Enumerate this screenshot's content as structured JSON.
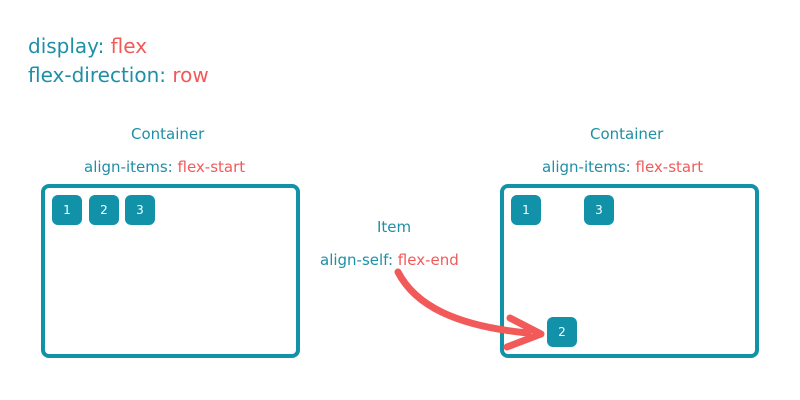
{
  "header": {
    "line1": {
      "property": "display",
      "separator": ":",
      "value": "flex"
    },
    "line2": {
      "property": "flex-direction",
      "separator": ":",
      "value": "row"
    }
  },
  "left_container": {
    "title": "Container",
    "property": "align-items",
    "separator": ":",
    "value": "flex-start",
    "items": [
      "1",
      "2",
      "3"
    ]
  },
  "middle": {
    "title": "Item",
    "property": "align-self",
    "separator": ":",
    "value": "flex-end"
  },
  "right_container": {
    "title": "Container",
    "property": "align-items",
    "separator": ":",
    "value": "flex-start",
    "items": [
      "1",
      "2",
      "3"
    ]
  },
  "colors": {
    "teal": "#1292a8",
    "keyword": "#1f8fa6",
    "value": "#f25a5a",
    "arrow": "#f25a5a"
  }
}
